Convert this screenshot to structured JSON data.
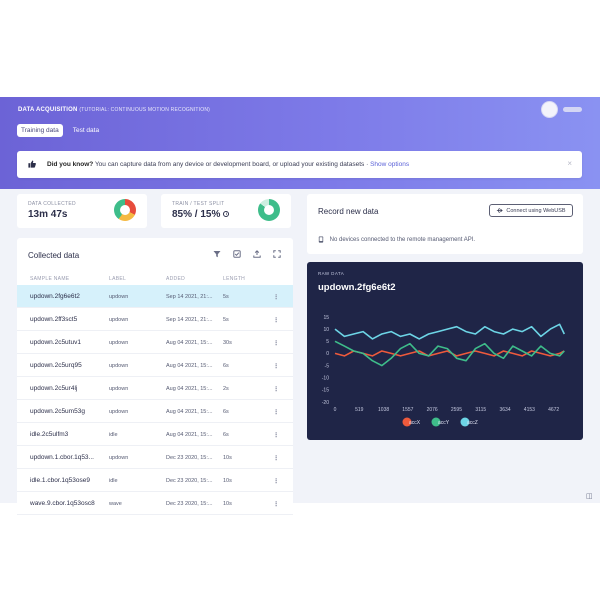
{
  "header": {
    "title": "DATA ACQUISITION",
    "subtitle": "(TUTORIAL: CONTINUOUS MOTION RECOGNITION)",
    "tabs": [
      {
        "label": "Training data",
        "active": true
      },
      {
        "label": "Test data",
        "active": false
      }
    ]
  },
  "tip": {
    "question": "Did you know?",
    "text": "You can capture data from any device or development board, or upload your existing datasets",
    "link": "Show options",
    "close": "×"
  },
  "stats": {
    "collected_label": "DATA COLLECTED",
    "collected_value": "13m 47s",
    "split_label": "TRAIN / TEST SPLIT",
    "split_value": "85% / 15%"
  },
  "collected": {
    "title": "Collected data",
    "columns": [
      "SAMPLE NAME",
      "LABEL",
      "ADDED",
      "LENGTH"
    ],
    "rows": [
      {
        "name": "updown.2fg6e6t2",
        "label": "updown",
        "added": "Sep 14 2021, 21:...",
        "length": "5s",
        "selected": true
      },
      {
        "name": "updown.2ff3sct5",
        "label": "updown",
        "added": "Sep 14 2021, 21:...",
        "length": "5s"
      },
      {
        "name": "updown.2c5utuv1",
        "label": "updown",
        "added": "Aug 04 2021, 15:...",
        "length": "30s"
      },
      {
        "name": "updown.2c5urq95",
        "label": "updown",
        "added": "Aug 04 2021, 15:...",
        "length": "6s"
      },
      {
        "name": "updown.2c5ur4lj",
        "label": "updown",
        "added": "Aug 04 2021, 15:...",
        "length": "2s"
      },
      {
        "name": "updown.2c5um53g",
        "label": "updown",
        "added": "Aug 04 2021, 15:...",
        "length": "6s"
      },
      {
        "name": "idle.2c5ulfm3",
        "label": "idle",
        "added": "Aug 04 2021, 15:...",
        "length": "6s"
      },
      {
        "name": "updown.1.cbor.1q53...",
        "label": "updown",
        "added": "Dec 23 2020, 15:...",
        "length": "10s"
      },
      {
        "name": "idle.1.cbor.1q53ose9",
        "label": "idle",
        "added": "Dec 23 2020, 15:...",
        "length": "10s"
      },
      {
        "name": "wave.9.cbor.1q53osc8",
        "label": "wave",
        "added": "Dec 23 2020, 15:...",
        "length": "10s"
      }
    ]
  },
  "record": {
    "title": "Record new data",
    "connect_label": "Connect using WebUSB",
    "no_device": "No devices connected to the remote management API."
  },
  "raw": {
    "label": "RAW DATA",
    "sample": "updown.2fg6e6t2"
  },
  "chart_data": {
    "type": "line",
    "x_ticks": [
      0,
      519,
      1038,
      1557,
      2076,
      2595,
      3115,
      3634,
      4153,
      4672
    ],
    "xlim": [
      0,
      5000
    ],
    "ylim": [
      -20,
      15
    ],
    "y_ticks": [
      15,
      10,
      5,
      0,
      -5,
      -10,
      -15,
      -20
    ],
    "legend_position": "bottom",
    "series": [
      {
        "name": "accX",
        "color": "#ee5a3c",
        "x": [
          0,
          200,
          400,
          600,
          800,
          1000,
          1200,
          1400,
          1600,
          1800,
          2000,
          2200,
          2400,
          2600,
          2800,
          3000,
          3200,
          3400,
          3600,
          3800,
          4000,
          4200,
          4400,
          4600,
          4800,
          4900
        ],
        "values": [
          0,
          -1,
          1,
          0,
          -1,
          1,
          0,
          -1,
          0,
          1,
          -1,
          0,
          1,
          -1,
          0,
          1,
          0,
          -1,
          1,
          0,
          -1,
          1,
          0,
          -1,
          0,
          1
        ]
      },
      {
        "name": "accY",
        "color": "#3ebd8a",
        "x": [
          0,
          200,
          400,
          600,
          800,
          1000,
          1200,
          1400,
          1600,
          1800,
          2000,
          2200,
          2400,
          2600,
          2800,
          3000,
          3200,
          3400,
          3600,
          3800,
          4000,
          4200,
          4400,
          4600,
          4800,
          4900
        ],
        "values": [
          5,
          3,
          1,
          0,
          -3,
          -5,
          -2,
          2,
          4,
          0,
          -1,
          3,
          2,
          -2,
          -3,
          2,
          4,
          0,
          -2,
          3,
          1,
          -1,
          3,
          0,
          -1,
          1
        ]
      },
      {
        "name": "accZ",
        "color": "#6dd5e6",
        "x": [
          0,
          200,
          400,
          600,
          800,
          1000,
          1200,
          1400,
          1600,
          1800,
          2000,
          2200,
          2400,
          2600,
          2800,
          3000,
          3200,
          3400,
          3600,
          3800,
          4000,
          4200,
          4400,
          4600,
          4800,
          4900
        ],
        "values": [
          10,
          7,
          8,
          9,
          6,
          8,
          9,
          7,
          8,
          6,
          8,
          9,
          10,
          11,
          9,
          8,
          11,
          9,
          8,
          10,
          9,
          11,
          7,
          10,
          12,
          8
        ]
      }
    ]
  }
}
